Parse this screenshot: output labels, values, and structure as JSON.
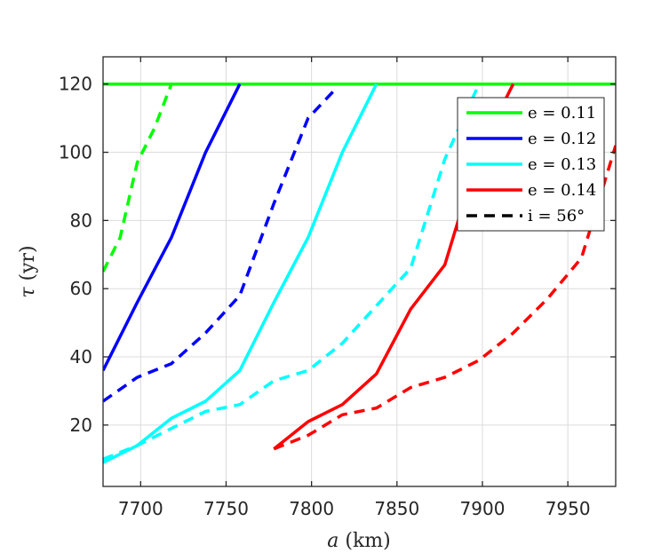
{
  "chart_data": {
    "type": "line",
    "xlabel": "a (km)",
    "ylabel": "τ (yr)",
    "xlim": [
      7678,
      7978
    ],
    "ylim": [
      2,
      128
    ],
    "xticks": [
      7700,
      7750,
      7800,
      7850,
      7900,
      7950
    ],
    "yticks": [
      20,
      40,
      60,
      80,
      100,
      120
    ],
    "grid": true,
    "legend_position": "top-right",
    "legend": [
      {
        "label": "e = 0.11",
        "color": "#00ff00",
        "style": "solid"
      },
      {
        "label": "e = 0.12",
        "color": "#0000ff",
        "style": "solid"
      },
      {
        "label": "e = 0.13",
        "color": "#00ffff",
        "style": "solid"
      },
      {
        "label": "e = 0.14",
        "color": "#ff0000",
        "style": "solid"
      },
      {
        "label": "i = 56°",
        "color": "#000000",
        "style": "dashed"
      }
    ],
    "series": [
      {
        "e": "0.11",
        "color": "#00ff00",
        "style": "solid",
        "points": [
          [
            7678,
            120
          ],
          [
            7978,
            120
          ]
        ]
      },
      {
        "e": "0.11",
        "color": "#00ff00",
        "style": "dashed",
        "points": [
          [
            7678,
            65
          ],
          [
            7688,
            75
          ],
          [
            7698,
            97
          ],
          [
            7708,
            107
          ],
          [
            7718,
            120
          ]
        ]
      },
      {
        "e": "0.12",
        "color": "#0000ff",
        "style": "solid",
        "points": [
          [
            7678,
            36
          ],
          [
            7698,
            56
          ],
          [
            7718,
            75
          ],
          [
            7738,
            100
          ],
          [
            7758,
            120
          ]
        ]
      },
      {
        "e": "0.12",
        "color": "#0000ff",
        "style": "dashed",
        "points": [
          [
            7678,
            27
          ],
          [
            7698,
            34
          ],
          [
            7718,
            38
          ],
          [
            7738,
            47
          ],
          [
            7758,
            58
          ],
          [
            7778,
            85
          ],
          [
            7798,
            110
          ],
          [
            7813,
            118
          ]
        ]
      },
      {
        "e": "0.13",
        "color": "#00ffff",
        "style": "solid",
        "points": [
          [
            7678,
            9
          ],
          [
            7698,
            14
          ],
          [
            7718,
            22
          ],
          [
            7738,
            27
          ],
          [
            7758,
            36
          ],
          [
            7778,
            56
          ],
          [
            7798,
            75
          ],
          [
            7818,
            100
          ],
          [
            7838,
            120
          ]
        ]
      },
      {
        "e": "0.13",
        "color": "#00ffff",
        "style": "dashed",
        "points": [
          [
            7678,
            10
          ],
          [
            7698,
            14
          ],
          [
            7718,
            19
          ],
          [
            7738,
            24
          ],
          [
            7758,
            26
          ],
          [
            7778,
            33
          ],
          [
            7798,
            36
          ],
          [
            7818,
            44
          ],
          [
            7838,
            55
          ],
          [
            7858,
            66
          ],
          [
            7878,
            98
          ],
          [
            7898,
            120
          ]
        ]
      },
      {
        "e": "0.14",
        "color": "#ff0000",
        "style": "solid",
        "points": [
          [
            7778,
            13
          ],
          [
            7798,
            21
          ],
          [
            7818,
            26
          ],
          [
            7838,
            35
          ],
          [
            7858,
            54
          ],
          [
            7878,
            67
          ],
          [
            7898,
            100
          ],
          [
            7918,
            120
          ]
        ]
      },
      {
        "e": "0.14",
        "color": "#ff0000",
        "style": "dashed",
        "points": [
          [
            7778,
            13
          ],
          [
            7798,
            17
          ],
          [
            7818,
            23
          ],
          [
            7838,
            25
          ],
          [
            7858,
            31
          ],
          [
            7878,
            34
          ],
          [
            7898,
            39
          ],
          [
            7918,
            47
          ],
          [
            7938,
            57
          ],
          [
            7958,
            69
          ],
          [
            7978,
            102
          ]
        ]
      }
    ]
  }
}
